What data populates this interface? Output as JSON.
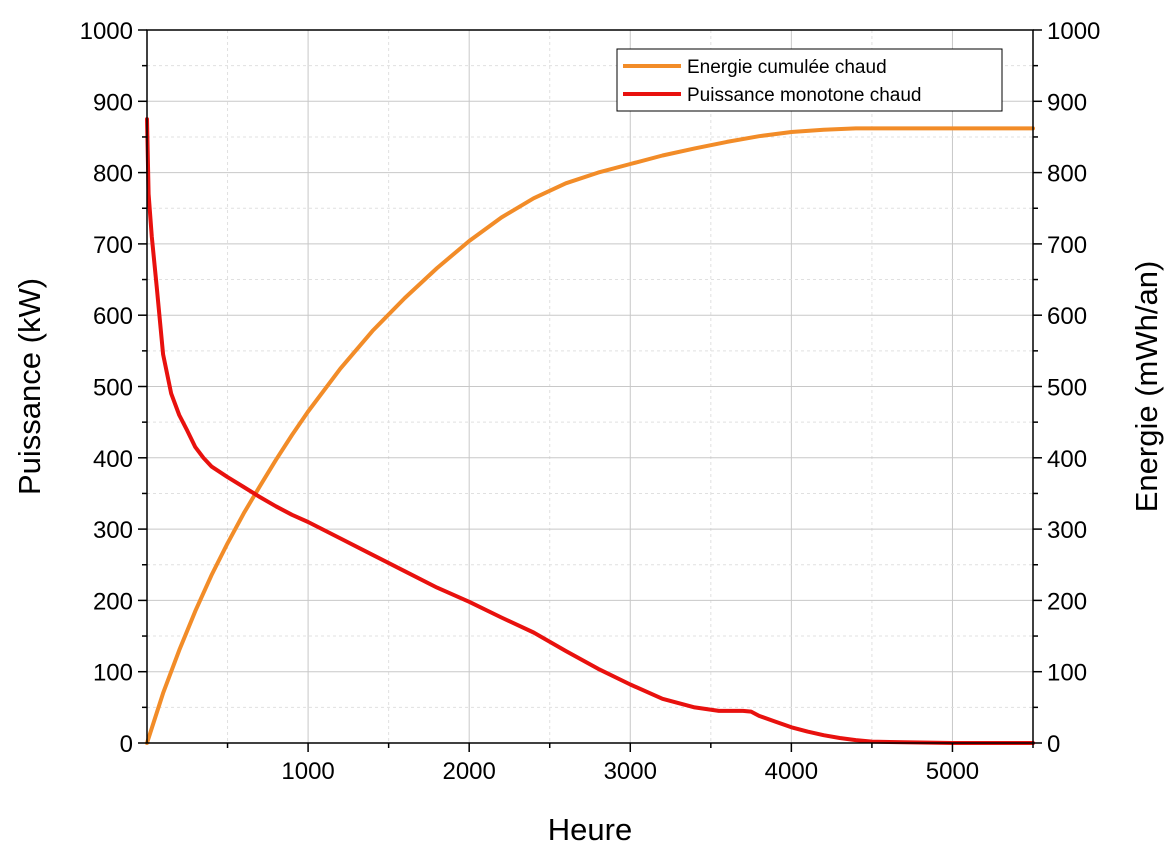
{
  "chart_data": {
    "type": "line",
    "xlabel": "Heure",
    "ylabel_left": "Puissance (kW)",
    "ylabel_right": "Energie (mWh/an)",
    "xlim": [
      0,
      5500
    ],
    "ylim_left": [
      0,
      1000
    ],
    "ylim_right": [
      0,
      1000
    ],
    "x_ticks": [
      1000,
      2000,
      3000,
      4000,
      5000
    ],
    "y_ticks_left": [
      0,
      100,
      200,
      300,
      400,
      500,
      600,
      700,
      800,
      900,
      1000
    ],
    "y_ticks_right": [
      0,
      100,
      200,
      300,
      400,
      500,
      600,
      700,
      800,
      900,
      1000
    ],
    "grid": true,
    "legend_position": "top-right",
    "series": [
      {
        "name": "Energie cumulée chaud",
        "color": "#f28c28",
        "axis": "right",
        "x": [
          0,
          100,
          200,
          300,
          400,
          500,
          600,
          700,
          800,
          900,
          1000,
          1200,
          1400,
          1600,
          1800,
          2000,
          2200,
          2400,
          2600,
          2800,
          3000,
          3200,
          3400,
          3600,
          3800,
          4000,
          4200,
          4400,
          4600,
          5000,
          5500
        ],
        "y": [
          0,
          70,
          130,
          185,
          235,
          280,
          322,
          360,
          397,
          432,
          465,
          525,
          578,
          624,
          666,
          704,
          737,
          764,
          785,
          800,
          812,
          824,
          834,
          843,
          851,
          857,
          860,
          862,
          862,
          862,
          862
        ]
      },
      {
        "name": "Puissance monotone chaud",
        "color": "#e8110e",
        "axis": "left",
        "x": [
          0,
          10,
          30,
          60,
          100,
          150,
          200,
          250,
          300,
          350,
          400,
          500,
          600,
          700,
          800,
          900,
          1000,
          1200,
          1400,
          1600,
          1800,
          2000,
          2200,
          2400,
          2600,
          2800,
          3000,
          3200,
          3400,
          3550,
          3700,
          3750,
          3800,
          3900,
          4000,
          4100,
          4200,
          4300,
          4400,
          4500,
          4700,
          5000,
          5500
        ],
        "y": [
          875,
          770,
          710,
          640,
          545,
          490,
          460,
          438,
          415,
          400,
          388,
          373,
          359,
          345,
          332,
          320,
          310,
          287,
          264,
          241,
          218,
          198,
          176,
          155,
          129,
          104,
          82,
          62,
          50,
          45,
          45,
          44,
          38,
          30,
          22,
          16,
          11,
          7,
          4,
          2,
          1,
          0,
          0
        ]
      }
    ]
  }
}
